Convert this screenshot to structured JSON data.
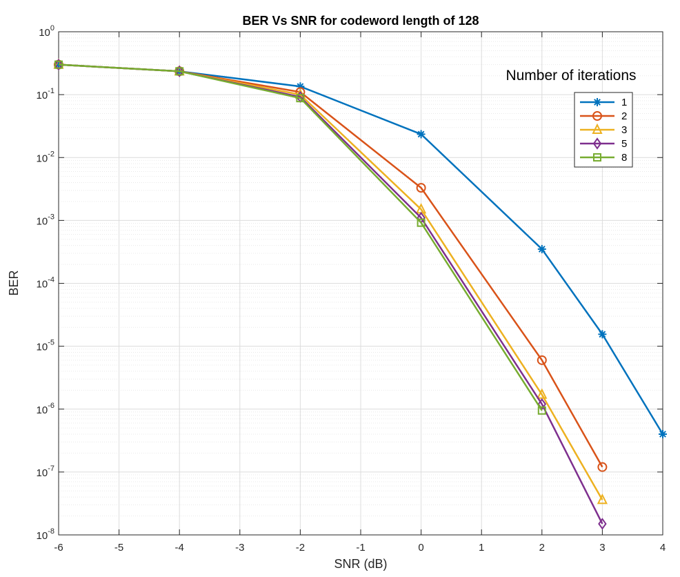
{
  "chart_data": {
    "type": "line",
    "title": "BER Vs SNR for codeword length of 128",
    "xlabel": "SNR (dB)",
    "ylabel": "BER",
    "xlim": [
      -6,
      4
    ],
    "ylim": [
      1e-08,
      1
    ],
    "yscale": "log",
    "grid": true,
    "x_ticks": [
      "-6",
      "-5",
      "-4",
      "-3",
      "-2",
      "-1",
      "0",
      "1",
      "2",
      "3",
      "4"
    ],
    "y_ticks": [
      {
        "base": "10",
        "exp": "0"
      },
      {
        "base": "10",
        "exp": "-1"
      },
      {
        "base": "10",
        "exp": "-2"
      },
      {
        "base": "10",
        "exp": "-3"
      },
      {
        "base": "10",
        "exp": "-4"
      },
      {
        "base": "10",
        "exp": "-5"
      },
      {
        "base": "10",
        "exp": "-6"
      },
      {
        "base": "10",
        "exp": "-7"
      },
      {
        "base": "10",
        "exp": "-8"
      }
    ],
    "legend_title": "Number of iterations",
    "legend_position": "top-right",
    "series": [
      {
        "name": "1",
        "color": "#0072BD",
        "marker": "asterisk",
        "x": [
          -6,
          -4,
          -2,
          0,
          2,
          3,
          4
        ],
        "y": [
          0.3,
          0.235,
          0.135,
          0.0235,
          0.00035,
          1.55e-05,
          4e-07
        ]
      },
      {
        "name": "2",
        "color": "#D95319",
        "marker": "circle",
        "x": [
          -6,
          -4,
          -2,
          0,
          2,
          3
        ],
        "y": [
          0.3,
          0.235,
          0.11,
          0.0033,
          6e-06,
          1.2e-07
        ]
      },
      {
        "name": "3",
        "color": "#EDB120",
        "marker": "triangle",
        "x": [
          -6,
          -4,
          -2,
          0,
          2,
          3
        ],
        "y": [
          0.3,
          0.235,
          0.1,
          0.0015,
          1.7e-06,
          3.6e-08
        ]
      },
      {
        "name": "5",
        "color": "#7E2F8E",
        "marker": "diamond",
        "x": [
          -6,
          -4,
          -2,
          0,
          2,
          3
        ],
        "y": [
          0.3,
          0.235,
          0.092,
          0.0011,
          1.2e-06,
          1.5e-08
        ]
      },
      {
        "name": "8",
        "color": "#77AC30",
        "marker": "square",
        "x": [
          -6,
          -4,
          -2,
          0,
          2
        ],
        "y": [
          0.3,
          0.235,
          0.088,
          0.00092,
          9.5e-07
        ]
      }
    ]
  }
}
